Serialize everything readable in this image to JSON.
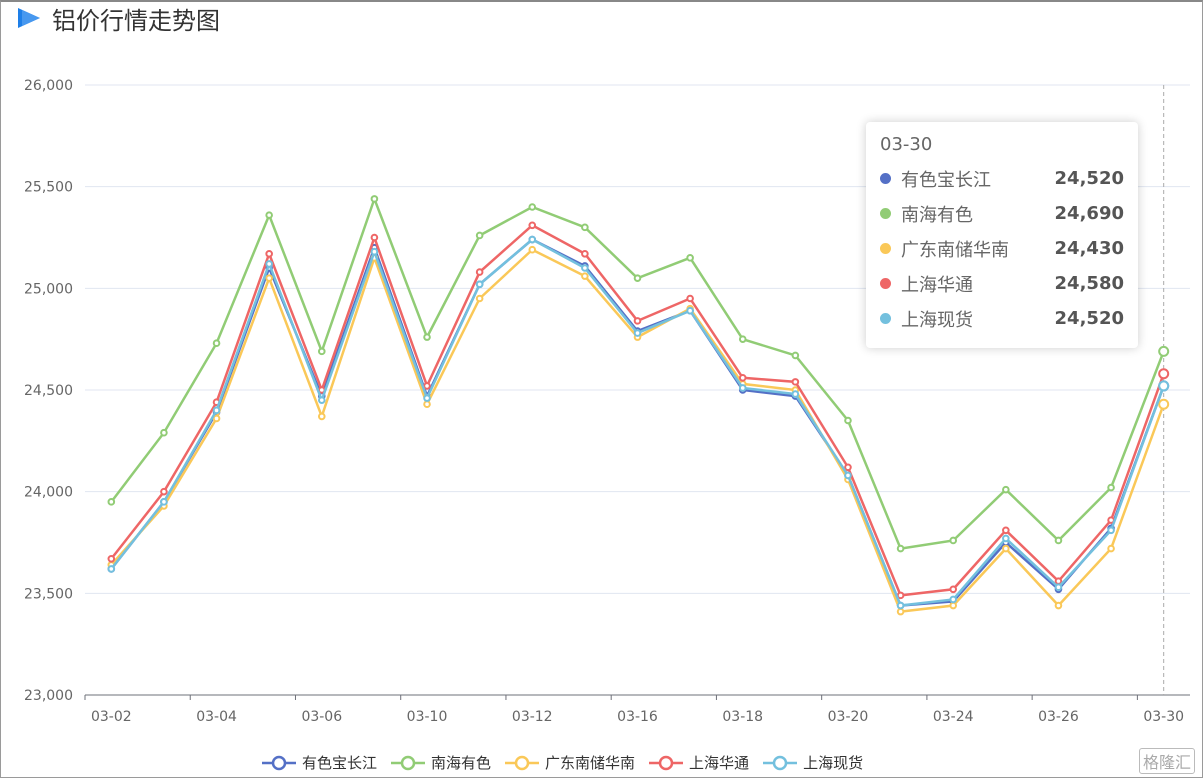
{
  "title": "铝价行情走势图",
  "watermark": "格隆汇",
  "chart_data": {
    "type": "line",
    "title": "铝价行情走势图",
    "categories": [
      "03-02",
      "",
      "03-04",
      "",
      "03-06",
      "",
      "03-10",
      "",
      "03-12",
      "",
      "03-16",
      "",
      "03-18",
      "",
      "03-20",
      "",
      "03-24",
      "",
      "03-26",
      "",
      "03-30"
    ],
    "ylim": [
      23000,
      26000
    ],
    "yticks": [
      23000,
      23500,
      24000,
      24500,
      25000,
      25500,
      26000
    ],
    "ytick_labels": [
      "23,000",
      "23,500",
      "24,000",
      "24,500",
      "25,000",
      "25,500",
      "26,000"
    ],
    "grid": true,
    "legend_position": "bottom",
    "series": [
      {
        "name": "有色宝长江",
        "color": "#5470c6",
        "values": [
          23620,
          23950,
          24390,
          25100,
          24470,
          25200,
          24470,
          25020,
          25240,
          25110,
          24790,
          24890,
          24500,
          24470,
          24080,
          23440,
          23460,
          23750,
          23520,
          23820,
          24520
        ]
      },
      {
        "name": "南海有色",
        "color": "#91cc75",
        "values": [
          23950,
          24290,
          24730,
          25360,
          24690,
          25440,
          24760,
          25260,
          25400,
          25300,
          25050,
          25150,
          24750,
          24670,
          24350,
          23720,
          23760,
          24010,
          23760,
          24020,
          24690
        ]
      },
      {
        "name": "广东南储华南",
        "color": "#fac858",
        "values": [
          23640,
          23930,
          24360,
          25050,
          24370,
          25150,
          24430,
          24950,
          25190,
          25060,
          24760,
          24900,
          24530,
          24500,
          24060,
          23410,
          23440,
          23720,
          23440,
          23720,
          24430
        ]
      },
      {
        "name": "上海华通",
        "color": "#ee6666",
        "values": [
          23670,
          24000,
          24440,
          25170,
          24500,
          25250,
          24520,
          25080,
          25310,
          25170,
          24840,
          24950,
          24560,
          24540,
          24120,
          23490,
          23520,
          23810,
          23560,
          23860,
          24580
        ]
      },
      {
        "name": "上海现货",
        "color": "#73c0de",
        "values": [
          23620,
          23950,
          24400,
          25120,
          24450,
          25180,
          24460,
          25020,
          25240,
          25100,
          24780,
          24890,
          24510,
          24480,
          24080,
          23440,
          23470,
          23770,
          23530,
          23810,
          24520
        ]
      }
    ],
    "tooltip": {
      "category": "03-30",
      "rows": [
        {
          "name": "有色宝长江",
          "value": "24,520",
          "color": "#5470c6"
        },
        {
          "name": "南海有色",
          "value": "24,690",
          "color": "#91cc75"
        },
        {
          "name": "广东南储华南",
          "value": "24,430",
          "color": "#fac858"
        },
        {
          "name": "上海华通",
          "value": "24,580",
          "color": "#ee6666"
        },
        {
          "name": "上海现货",
          "value": "24,520",
          "color": "#73c0de"
        }
      ]
    }
  }
}
